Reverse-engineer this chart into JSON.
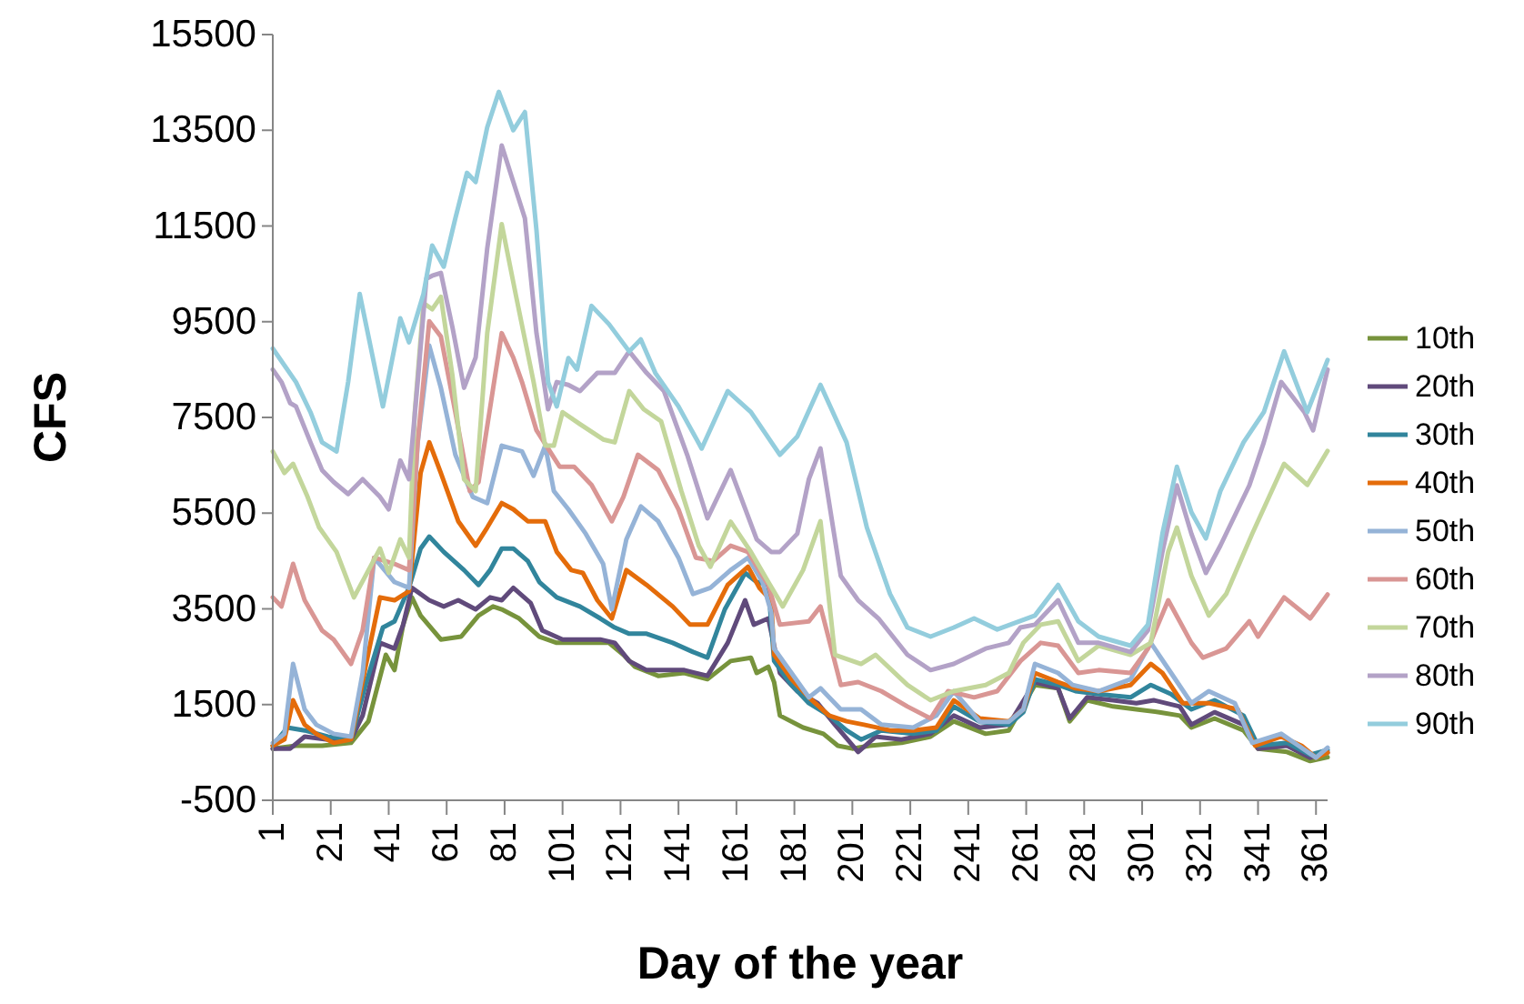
{
  "chart_data": {
    "type": "line",
    "xlabel": "Day of the year",
    "ylabel": "CFS",
    "xlim": [
      1,
      365
    ],
    "ylim": [
      -500,
      15500
    ],
    "xticks": [
      1,
      21,
      41,
      61,
      81,
      101,
      121,
      141,
      161,
      181,
      201,
      221,
      241,
      261,
      281,
      301,
      321,
      341,
      361
    ],
    "yticks": [
      -500,
      1500,
      3500,
      5500,
      7500,
      9500,
      11500,
      13500,
      15500
    ],
    "legend": "right",
    "grid": false,
    "marker": "none",
    "line_style": "solid",
    "series": [
      {
        "name": "10th",
        "color": "#77933c",
        "x": [
          1,
          9,
          18,
          28,
          34,
          40,
          43,
          46,
          49,
          52,
          59,
          66,
          72,
          77,
          80,
          86,
          93,
          99,
          107,
          117,
          122,
          126,
          134,
          143,
          151,
          159,
          166,
          168,
          172,
          174,
          176,
          184,
          191,
          196,
          201,
          207,
          218,
          228,
          236,
          247,
          255,
          264,
          272,
          276,
          282,
          291,
          299,
          307,
          314,
          318,
          326,
          336,
          341,
          351,
          359,
          365
        ],
        "values": [
          580,
          640,
          640,
          700,
          1150,
          2540,
          2220,
          3170,
          3740,
          3360,
          2860,
          2920,
          3360,
          3550,
          3490,
          3300,
          2920,
          2790,
          2790,
          2790,
          2540,
          2290,
          2100,
          2160,
          2030,
          2410,
          2480,
          2160,
          2290,
          1970,
          1270,
          1020,
          890,
          640,
          580,
          640,
          700,
          830,
          1150,
          890,
          960,
          1910,
          1840,
          1150,
          1590,
          1460,
          1400,
          1340,
          1270,
          1020,
          1210,
          960,
          580,
          510,
          320,
          400
        ]
      },
      {
        "name": "20th",
        "color": "#604a7b",
        "x": [
          1,
          7,
          12,
          20,
          28,
          32,
          38,
          43,
          46,
          49,
          55,
          60,
          65,
          71,
          76,
          80,
          84,
          90,
          94,
          101,
          107,
          114,
          119,
          124,
          130,
          136,
          143,
          151,
          158,
          164,
          167,
          172,
          176,
          182,
          189,
          195,
          203,
          209,
          218,
          228,
          236,
          245,
          255,
          264,
          272,
          276,
          282,
          291,
          299,
          305,
          314,
          318,
          326,
          336,
          341,
          351,
          359,
          365
        ],
        "values": [
          580,
          580,
          830,
          770,
          770,
          1270,
          2790,
          2670,
          3170,
          3940,
          3680,
          3550,
          3680,
          3490,
          3740,
          3680,
          3940,
          3620,
          3050,
          2860,
          2860,
          2860,
          2790,
          2410,
          2220,
          2220,
          2220,
          2100,
          2790,
          3680,
          3170,
          3300,
          2160,
          1780,
          1530,
          1080,
          510,
          830,
          770,
          890,
          1270,
          1020,
          1080,
          1970,
          1840,
          1210,
          1650,
          1590,
          1530,
          1590,
          1460,
          1080,
          1340,
          1080,
          580,
          640,
          390,
          500
        ]
      },
      {
        "name": "30th",
        "color": "#31859c",
        "x": [
          1,
          6,
          12,
          20,
          28,
          33,
          39,
          43,
          48,
          52,
          55,
          60,
          67,
          72,
          76,
          80,
          84,
          89,
          93,
          99,
          107,
          114,
          119,
          124,
          130,
          139,
          146,
          151,
          157,
          164,
          168,
          172,
          174,
          180,
          186,
          193,
          199,
          204,
          211,
          222,
          230,
          236,
          245,
          255,
          260,
          264,
          272,
          278,
          286,
          297,
          304,
          311,
          318,
          326,
          336,
          341,
          351,
          359,
          365
        ],
        "values": [
          640,
          1020,
          960,
          830,
          770,
          1910,
          3110,
          3240,
          3940,
          4760,
          5010,
          4690,
          4310,
          4000,
          4310,
          4760,
          4760,
          4500,
          4060,
          3740,
          3550,
          3300,
          3110,
          2980,
          2980,
          2790,
          2600,
          2480,
          3490,
          4250,
          4060,
          4000,
          2410,
          1910,
          1530,
          1270,
          960,
          770,
          960,
          890,
          960,
          1460,
          1140,
          1080,
          1340,
          2030,
          1910,
          1780,
          1720,
          1650,
          1910,
          1720,
          1400,
          1590,
          1270,
          640,
          700,
          450,
          550
        ]
      },
      {
        "name": "40th",
        "color": "#e46c0a",
        "x": [
          1,
          5,
          8,
          12,
          16,
          22,
          28,
          33,
          38,
          43,
          48,
          52,
          55,
          59,
          65,
          71,
          75,
          80,
          84,
          89,
          95,
          99,
          104,
          108,
          113,
          118,
          123,
          130,
          139,
          145,
          151,
          158,
          165,
          169,
          173,
          174,
          180,
          186,
          193,
          199,
          205,
          214,
          222,
          230,
          236,
          245,
          255,
          260,
          264,
          272,
          278,
          286,
          297,
          304,
          308,
          315,
          324,
          334,
          340,
          349,
          356,
          361,
          365
        ],
        "values": [
          640,
          770,
          1590,
          1080,
          890,
          700,
          770,
          2290,
          3740,
          3680,
          3870,
          6340,
          6980,
          6340,
          5330,
          4820,
          5200,
          5710,
          5580,
          5330,
          5330,
          4690,
          4310,
          4250,
          3680,
          3300,
          4310,
          4000,
          3550,
          3170,
          3170,
          4000,
          4380,
          3930,
          3680,
          2540,
          2030,
          1650,
          1270,
          1150,
          1080,
          960,
          960,
          1020,
          1590,
          1210,
          1150,
          1400,
          2160,
          1970,
          1840,
          1780,
          1910,
          2350,
          2160,
          1530,
          1530,
          1400,
          640,
          830,
          640,
          390,
          500
        ]
      },
      {
        "name": "50th",
        "color": "#95b3d7",
        "x": [
          1,
          5,
          8,
          12,
          16,
          22,
          28,
          32,
          36,
          43,
          48,
          51,
          55,
          59,
          64,
          70,
          75,
          80,
          87,
          91,
          95,
          98,
          103,
          109,
          115,
          118,
          123,
          128,
          134,
          141,
          146,
          152,
          159,
          165,
          170,
          173,
          174,
          180,
          186,
          190,
          197,
          204,
          211,
          222,
          230,
          236,
          245,
          255,
          260,
          264,
          272,
          277,
          286,
          297,
          304,
          311,
          318,
          324,
          333,
          339,
          349,
          355,
          361,
          365
        ],
        "values": [
          700,
          890,
          2350,
          1400,
          1080,
          890,
          830,
          2160,
          4570,
          4060,
          3940,
          6980,
          9000,
          8120,
          6720,
          5840,
          5710,
          6910,
          6790,
          6280,
          6910,
          5960,
          5580,
          5070,
          4440,
          3490,
          4950,
          5640,
          5330,
          4570,
          3810,
          3940,
          4310,
          4570,
          4060,
          3430,
          2670,
          2160,
          1650,
          1840,
          1400,
          1400,
          1080,
          1020,
          1270,
          1780,
          1140,
          1140,
          1400,
          2350,
          2160,
          1910,
          1780,
          2030,
          2790,
          2160,
          1530,
          1780,
          1530,
          700,
          890,
          640,
          390,
          600
        ]
      },
      {
        "name": "60th",
        "color": "#d99694",
        "x": [
          1,
          4,
          8,
          12,
          18,
          22,
          28,
          32,
          36,
          43,
          48,
          51,
          55,
          59,
          64,
          69,
          72,
          80,
          84,
          87,
          92,
          96,
          100,
          105,
          111,
          118,
          122,
          127,
          134,
          141,
          147,
          153,
          159,
          165,
          170,
          172,
          176,
          186,
          190,
          197,
          203,
          211,
          220,
          228,
          234,
          243,
          251,
          259,
          266,
          272,
          279,
          286,
          297,
          303,
          310,
          318,
          322,
          330,
          338,
          341,
          350,
          359,
          365
        ],
        "values": [
          3740,
          3550,
          4440,
          3680,
          3050,
          2860,
          2350,
          3050,
          4570,
          4440,
          4310,
          6980,
          9510,
          9190,
          7610,
          5960,
          6150,
          9260,
          8750,
          8240,
          7230,
          6850,
          6470,
          6470,
          6090,
          5330,
          5840,
          6720,
          6400,
          5580,
          4570,
          4500,
          4820,
          4690,
          4190,
          4000,
          3170,
          3240,
          3550,
          1910,
          1970,
          1780,
          1460,
          1210,
          1780,
          1650,
          1780,
          2410,
          2790,
          2730,
          2160,
          2220,
          2160,
          2670,
          3680,
          2790,
          2480,
          2670,
          3240,
          2920,
          3740,
          3300,
          3800
        ]
      },
      {
        "name": "70th",
        "color": "#c3d69b",
        "x": [
          1,
          5,
          8,
          13,
          17,
          23,
          29,
          33,
          38,
          41,
          45,
          48,
          50,
          53,
          56,
          59,
          63,
          67,
          71,
          75,
          80,
          85,
          91,
          95,
          98,
          101,
          107,
          115,
          119,
          124,
          129,
          135,
          142,
          148,
          152,
          159,
          166,
          172,
          177,
          184,
          190,
          195,
          204,
          209,
          220,
          228,
          236,
          247,
          255,
          260,
          266,
          272,
          279,
          286,
          297,
          304,
          310,
          313,
          318,
          324,
          330,
          339,
          350,
          358,
          365
        ],
        "values": [
          6790,
          6340,
          6530,
          5840,
          5200,
          4690,
          3740,
          4190,
          4760,
          4250,
          4950,
          4570,
          7610,
          9890,
          9760,
          10020,
          8370,
          6210,
          5960,
          9260,
          11540,
          10020,
          8240,
          6910,
          6910,
          7610,
          7360,
          7040,
          6980,
          8050,
          7670,
          7420,
          5960,
          4820,
          4380,
          5320,
          4690,
          4060,
          3550,
          4310,
          5330,
          2540,
          2350,
          2540,
          1910,
          1590,
          1780,
          1910,
          2160,
          2790,
          3170,
          3240,
          2410,
          2730,
          2540,
          2790,
          4690,
          5200,
          4190,
          3360,
          3810,
          5070,
          6530,
          6090,
          6800
        ]
      },
      {
        "name": "80th",
        "color": "#b3a2c7",
        "x": [
          1,
          4,
          7,
          9,
          14,
          18,
          22,
          27,
          32,
          38,
          41,
          45,
          48,
          51,
          54,
          56,
          59,
          63,
          67,
          71,
          75,
          80,
          82,
          88,
          92,
          96,
          99,
          103,
          107,
          113,
          119,
          124,
          130,
          136,
          144,
          151,
          159,
          168,
          173,
          176,
          182,
          186,
          190,
          197,
          203,
          210,
          220,
          228,
          236,
          247,
          255,
          259,
          264,
          272,
          279,
          286,
          297,
          303,
          308,
          313,
          318,
          323,
          328,
          338,
          343,
          349,
          357,
          360,
          365
        ],
        "values": [
          8500,
          8240,
          7800,
          7730,
          6980,
          6400,
          6150,
          5900,
          6210,
          5840,
          5580,
          6600,
          6210,
          8240,
          10400,
          10460,
          10520,
          9380,
          8120,
          8750,
          11030,
          13180,
          12800,
          11660,
          9260,
          7670,
          8240,
          8180,
          8050,
          8430,
          8430,
          8880,
          8430,
          8050,
          6720,
          5390,
          6400,
          4950,
          4690,
          4690,
          5070,
          6210,
          6850,
          4190,
          3680,
          3300,
          2540,
          2220,
          2350,
          2670,
          2790,
          3110,
          3170,
          3680,
          2790,
          2790,
          2600,
          3050,
          4690,
          6080,
          5070,
          4250,
          4820,
          6080,
          6980,
          8240,
          7610,
          7230,
          8500
        ]
      },
      {
        "name": "90th",
        "color": "#93cddd",
        "x": [
          1,
          9,
          14,
          18,
          23,
          27,
          31,
          39,
          45,
          48,
          53,
          56,
          60,
          64,
          68,
          71,
          75,
          79,
          84,
          88,
          92,
          96,
          99,
          103,
          106,
          111,
          117,
          124,
          128,
          133,
          141,
          149,
          158,
          166,
          176,
          182,
          190,
          199,
          206,
          214,
          220,
          228,
          236,
          243,
          251,
          264,
          272,
          279,
          286,
          297,
          303,
          308,
          313,
          318,
          323,
          328,
          336,
          343,
          350,
          358,
          365
        ],
        "values": [
          8940,
          8240,
          7610,
          6980,
          6790,
          8240,
          10080,
          7730,
          9570,
          9070,
          10080,
          11090,
          10650,
          11660,
          12610,
          12420,
          13560,
          14300,
          13500,
          13880,
          11410,
          8240,
          7730,
          8740,
          8500,
          9830,
          9450,
          8880,
          9130,
          8430,
          7730,
          6850,
          8050,
          7610,
          6720,
          7100,
          8180,
          6980,
          5200,
          3810,
          3110,
          2920,
          3110,
          3300,
          3070,
          3360,
          4000,
          3240,
          2920,
          2730,
          3170,
          5070,
          6470,
          5520,
          4970,
          5960,
          6980,
          7610,
          8880,
          7610,
          8700
        ]
      }
    ]
  }
}
